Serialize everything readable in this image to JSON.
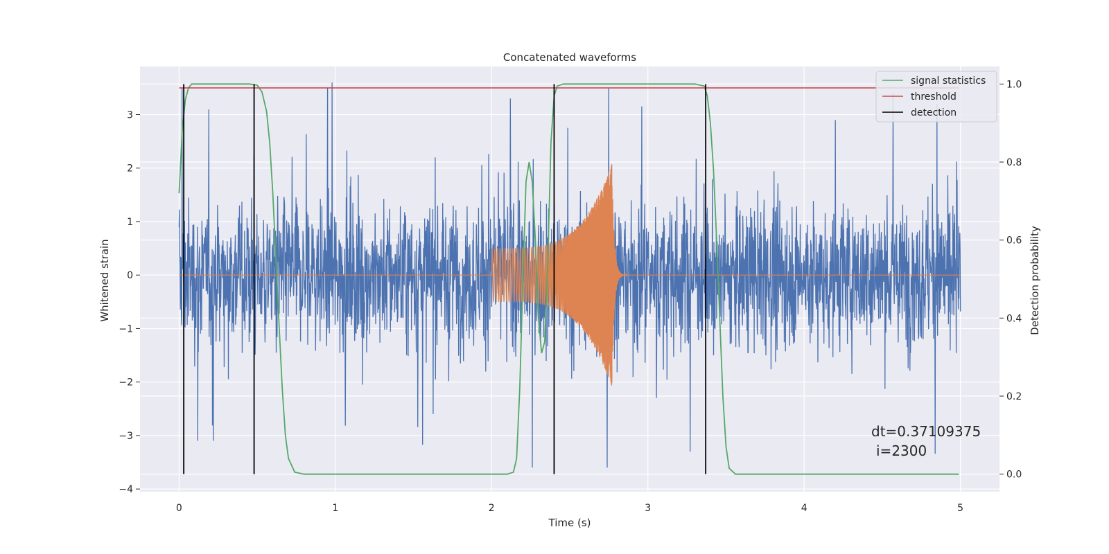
{
  "chart_data": {
    "type": "line",
    "title": "Concatenated waveforms",
    "xlabel": "Time (s)",
    "ylabel": "Whitened strain",
    "y2label": "Detection probability",
    "xlim": [
      -0.25,
      5.25
    ],
    "ylim": [
      -4.05,
      3.9
    ],
    "y2lim": [
      -0.045,
      1.045
    ],
    "xticks": [
      0,
      1,
      2,
      3,
      4,
      5
    ],
    "yticks": [
      -4,
      -3,
      -2,
      -1,
      0,
      1,
      2,
      3
    ],
    "y2ticks": [
      0.0,
      0.2,
      0.4,
      0.6,
      0.8,
      1.0
    ],
    "ytick_labels": [
      "−4",
      "−3",
      "−2",
      "−1",
      "0",
      "1",
      "2",
      "3"
    ],
    "y2tick_labels": [
      "0.0",
      "0.2",
      "0.4",
      "0.6",
      "0.8",
      "1.0"
    ],
    "grid": true,
    "legend_position": "top-right",
    "series": [
      {
        "name": "",
        "axis": "left",
        "color": "#4c72b0",
        "kind": "noise",
        "x_range": [
          0,
          5
        ],
        "amplitude_typical": 1.0,
        "amplitude_peak": 3.6,
        "notable_peaks": [
          [
            0.02,
            3.5
          ],
          [
            0.95,
            3.5
          ],
          [
            0.98,
            3.6
          ],
          [
            2.12,
            3.3
          ],
          [
            2.75,
            3.5
          ],
          [
            4.2,
            2.9
          ],
          [
            4.85,
            3.2
          ],
          [
            0.12,
            -3.1
          ],
          [
            2.26,
            -3.6
          ],
          [
            2.74,
            -3.6
          ],
          [
            0.22,
            -3.1
          ],
          [
            3.27,
            -3.3
          ]
        ]
      },
      {
        "name": "",
        "axis": "left",
        "color": "#dd8452",
        "kind": "chirp",
        "x_range": [
          0,
          5
        ],
        "chirp_start": 2.0,
        "merger": 2.77,
        "start_amplitude": 0.5,
        "peak_amplitude": 2.1,
        "ringdown_end": 3.0
      },
      {
        "name": "signal statistics",
        "axis": "right",
        "color": "#55a868",
        "x": [
          0.0,
          0.02,
          0.04,
          0.06,
          0.08,
          0.12,
          0.3,
          0.45,
          0.5,
          0.53,
          0.56,
          0.58,
          0.6,
          0.62,
          0.64,
          0.66,
          0.68,
          0.7,
          0.74,
          0.8,
          1.5,
          2.1,
          2.14,
          2.16,
          2.18,
          2.2,
          2.22,
          2.24,
          2.26,
          2.28,
          2.3,
          2.32,
          2.34,
          2.36,
          2.38,
          2.4,
          2.42,
          2.46,
          2.6,
          3.3,
          3.36,
          3.38,
          3.4,
          3.42,
          3.44,
          3.46,
          3.48,
          3.5,
          3.52,
          3.56,
          4.0,
          4.99
        ],
        "y": [
          0.72,
          0.88,
          0.96,
          0.99,
          1.0,
          1.0,
          1.0,
          1.0,
          0.997,
          0.98,
          0.93,
          0.85,
          0.72,
          0.55,
          0.38,
          0.22,
          0.1,
          0.04,
          0.005,
          0.0,
          0.0,
          0.0,
          0.005,
          0.04,
          0.22,
          0.5,
          0.75,
          0.8,
          0.75,
          0.6,
          0.4,
          0.31,
          0.34,
          0.55,
          0.85,
          0.97,
          0.995,
          1.0,
          1.0,
          1.0,
          0.995,
          0.97,
          0.9,
          0.78,
          0.6,
          0.4,
          0.2,
          0.07,
          0.015,
          0.0,
          0.0,
          0.0
        ]
      },
      {
        "name": "threshold",
        "axis": "right",
        "color": "#c44e52",
        "x": [
          0.0,
          4.99
        ],
        "y": [
          0.99,
          0.99
        ]
      },
      {
        "name": "detection",
        "axis": "right",
        "color": "#000000",
        "type": "vlines",
        "x": [
          0.03,
          0.48,
          2.4,
          3.37
        ],
        "ymin": 0.0,
        "ymax": 1.0
      }
    ],
    "annotation": {
      "line1": "dt=0.37109375",
      "line2": "i=2300"
    }
  }
}
